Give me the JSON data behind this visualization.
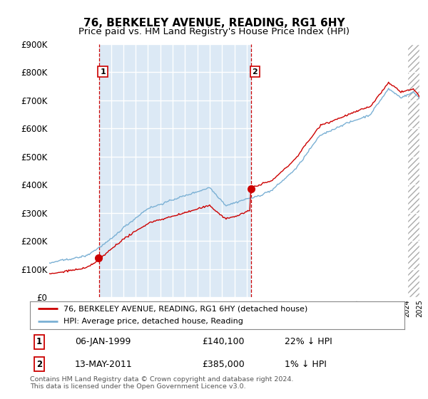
{
  "title": "76, BERKELEY AVENUE, READING, RG1 6HY",
  "subtitle": "Price paid vs. HM Land Registry's House Price Index (HPI)",
  "ylim": [
    0,
    900000
  ],
  "yticks": [
    0,
    100000,
    200000,
    300000,
    400000,
    500000,
    600000,
    700000,
    800000,
    900000
  ],
  "ytick_labels": [
    "£0",
    "£100K",
    "£200K",
    "£300K",
    "£400K",
    "£500K",
    "£600K",
    "£700K",
    "£800K",
    "£900K"
  ],
  "background_color": "#ffffff",
  "plot_bg_color": "#dce9f5",
  "plot_bg_color2": "#ffffff",
  "grid_color": "#ffffff",
  "line1_color": "#cc0000",
  "line2_color": "#7ab0d4",
  "vline_color": "#cc0000",
  "vline1_x": 1999.04,
  "vline2_x": 2011.37,
  "xlim_left": 1995.0,
  "xlim_right": 2025.0,
  "purchase1_date": "06-JAN-1999",
  "purchase1_price": "£140,100",
  "purchase1_hpi": "22% ↓ HPI",
  "purchase2_date": "13-MAY-2011",
  "purchase2_price": "£385,000",
  "purchase2_hpi": "1% ↓ HPI",
  "legend1_label": "76, BERKELEY AVENUE, READING, RG1 6HY (detached house)",
  "legend2_label": "HPI: Average price, detached house, Reading",
  "footer": "Contains HM Land Registry data © Crown copyright and database right 2024.\nThis data is licensed under the Open Government Licence v3.0.",
  "title_fontsize": 11,
  "subtitle_fontsize": 9.5,
  "marker1_price": 140100,
  "marker2_price": 385000
}
